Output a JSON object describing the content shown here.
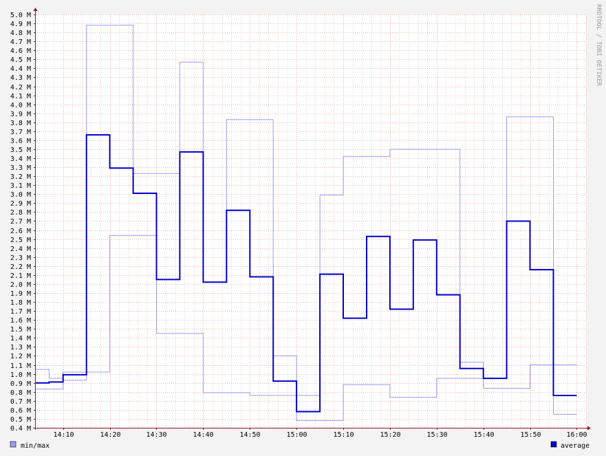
{
  "watermark": "RRDTOOL / TOBI OETIKER",
  "colors": {
    "background": "#f3f3f3",
    "plot": "#ffffff",
    "minor_grid": "#dca8a8",
    "major_grid": "#e06b6b",
    "axis": "#8b1a1a",
    "minmax": "#9b9bf0",
    "average": "#0000cc"
  },
  "chart_data": {
    "type": "line",
    "step": true,
    "grid": true,
    "legend_placement": "bottom",
    "ylim": [
      0.4,
      5.0
    ],
    "y_unit": "M",
    "y_ticks": [
      "0.4 M",
      "0.5 M",
      "0.6 M",
      "0.7 M",
      "0.8 M",
      "0.9 M",
      "1.0 M",
      "1.1 M",
      "1.2 M",
      "1.3 M",
      "1.4 M",
      "1.5 M",
      "1.6 M",
      "1.7 M",
      "1.8 M",
      "1.9 M",
      "2.0 M",
      "2.1 M",
      "2.2 M",
      "2.3 M",
      "2.4 M",
      "2.5 M",
      "2.6 M",
      "2.7 M",
      "2.8 M",
      "2.9 M",
      "3.0 M",
      "3.1 M",
      "3.2 M",
      "3.3 M",
      "3.4 M",
      "3.5 M",
      "3.6 M",
      "3.7 M",
      "3.8 M",
      "3.9 M",
      "4.0 M",
      "4.1 M",
      "4.2 M",
      "4.3 M",
      "4.4 M",
      "4.5 M",
      "4.6 M",
      "4.7 M",
      "4.8 M",
      "4.9 M",
      "5.0 M"
    ],
    "x_ticks": [
      "14:10",
      "14:20",
      "14:30",
      "14:40",
      "14:50",
      "15:00",
      "15:10",
      "15:20",
      "15:30",
      "15:40",
      "15:50",
      "16:00"
    ],
    "x_start": "14:04",
    "x_end": "16:02",
    "step_starts": [
      "14:04",
      "14:07",
      "14:10",
      "14:15",
      "14:20",
      "14:25",
      "14:30",
      "14:35",
      "14:40",
      "14:45",
      "14:50",
      "14:55",
      "15:00",
      "15:05",
      "15:10",
      "15:15",
      "15:20",
      "15:25",
      "15:30",
      "15:35",
      "15:40",
      "15:45",
      "15:50",
      "15:55"
    ],
    "step_end": "16:00",
    "series": [
      {
        "name": "average",
        "values": [
          0.9,
          0.91,
          0.99,
          3.66,
          3.29,
          3.01,
          2.05,
          3.47,
          2.02,
          2.82,
          2.08,
          0.92,
          0.58,
          2.11,
          1.62,
          2.53,
          1.72,
          2.49,
          1.88,
          1.06,
          0.95,
          2.7,
          2.16,
          0.76
        ]
      },
      {
        "name": "max",
        "values": [
          1.05,
          0.95,
          1.02,
          4.88,
          4.88,
          3.23,
          3.23,
          4.47,
          2.02,
          3.83,
          3.83,
          1.2,
          0.76,
          2.99,
          3.42,
          3.42,
          3.5,
          3.5,
          3.5,
          1.13,
          0.95,
          3.86,
          3.86,
          1.1
        ]
      },
      {
        "name": "min",
        "values": [
          0.83,
          0.83,
          0.93,
          1.02,
          2.54,
          2.54,
          1.45,
          1.45,
          0.79,
          0.79,
          0.76,
          0.76,
          0.48,
          0.48,
          0.88,
          0.88,
          0.74,
          0.74,
          0.95,
          0.95,
          0.84,
          0.84,
          1.1,
          0.55
        ]
      }
    ],
    "legend": [
      "min/max",
      "average"
    ]
  }
}
